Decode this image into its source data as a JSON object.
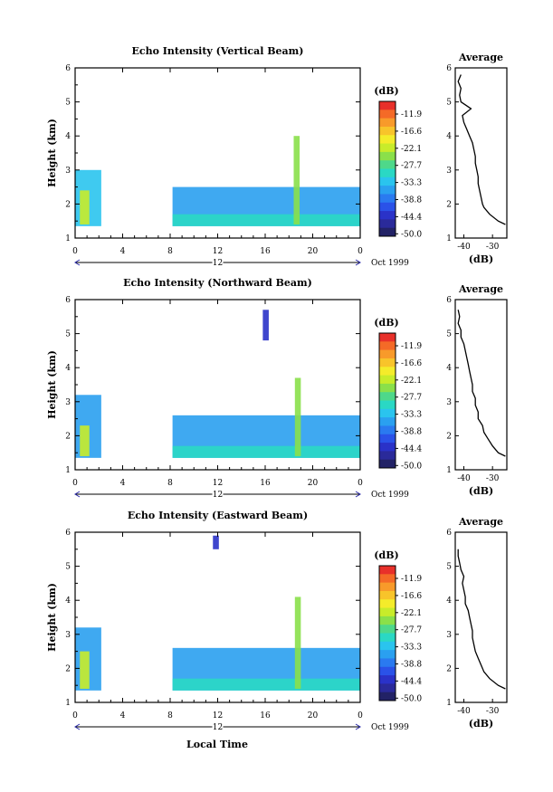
{
  "figure": {
    "x_axis_title": "Local Time"
  },
  "colorbar": {
    "unit": "(dB)",
    "labels": [
      "-11.9",
      "-16.6",
      "-22.1",
      "-27.7",
      "-33.3",
      "-38.8",
      "-44.4",
      "-50.0"
    ],
    "colors": [
      "#e8302a",
      "#f46a27",
      "#f89a2a",
      "#f8c42a",
      "#f4ec2a",
      "#c8ec2a",
      "#8ae04a",
      "#4ed88a",
      "#2ad8c4",
      "#2ac4ee",
      "#2aa0f0",
      "#2a7af0",
      "#2a52e8",
      "#2a32c8",
      "#2a2a9a",
      "#222266"
    ]
  },
  "chart_data": [
    {
      "type": "heatmap",
      "title": "Echo Intensity (Vertical Beam)",
      "ylabel": "Height (km)",
      "xlabel": "Local Time",
      "x_ticks": [
        "0",
        "4",
        "8",
        "12",
        "16",
        "20",
        "0"
      ],
      "y_ticks": [
        "1",
        "2",
        "3",
        "4",
        "5",
        "6"
      ],
      "xlim": [
        0,
        24
      ],
      "ylim": [
        1,
        6
      ],
      "date_label": "12",
      "month_label": "Oct 1999",
      "zlim": [
        -50.0,
        -11.9
      ],
      "echo_regions": [
        {
          "t_start": 0,
          "t_end": 2.2,
          "h_bottom": 1.35,
          "h_top": 3.0,
          "level": -36
        },
        {
          "t_start": 0.4,
          "t_end": 1.2,
          "h_bottom": 1.4,
          "h_top": 2.4,
          "level": -25
        },
        {
          "t_start": 8.2,
          "t_end": 24,
          "h_bottom": 1.35,
          "h_top": 2.5,
          "level": -38
        },
        {
          "t_start": 8.2,
          "t_end": 24,
          "h_bottom": 1.35,
          "h_top": 1.7,
          "level": -32
        },
        {
          "t_start": 18.4,
          "t_end": 18.9,
          "h_bottom": 1.4,
          "h_top": 4.0,
          "level": -28
        }
      ],
      "profile": {
        "title": "Average",
        "xlabel": "(dB)",
        "x_ticks": [
          "-40",
          "-30"
        ],
        "xlim": [
          -43,
          -25
        ],
        "height": [
          1.4,
          1.5,
          1.7,
          1.9,
          2.0,
          2.2,
          2.4,
          2.6,
          2.8,
          3.0,
          3.2,
          3.4,
          3.6,
          3.8,
          4.0,
          4.2,
          4.4,
          4.6,
          4.8,
          5.0,
          5.2,
          5.4,
          5.6,
          5.8
        ],
        "value": [
          -25.5,
          -28,
          -31,
          -33,
          -33.5,
          -34,
          -34.5,
          -35,
          -35,
          -35.5,
          -36,
          -36,
          -36.5,
          -37,
          -38,
          -39,
          -40,
          -40.5,
          -37.5,
          -41,
          -41.5,
          -41,
          -42,
          -41
        ]
      }
    },
    {
      "type": "heatmap",
      "title": "Echo Intensity (Northward Beam)",
      "ylabel": "Height (km)",
      "xlabel": "Local Time",
      "x_ticks": [
        "0",
        "4",
        "8",
        "12",
        "16",
        "20",
        "0"
      ],
      "y_ticks": [
        "1",
        "2",
        "3",
        "4",
        "5",
        "6"
      ],
      "xlim": [
        0,
        24
      ],
      "ylim": [
        1,
        6
      ],
      "date_label": "12",
      "month_label": "Oct 1999",
      "zlim": [
        -50.0,
        -11.9
      ],
      "echo_regions": [
        {
          "t_start": 0,
          "t_end": 2.2,
          "h_bottom": 1.35,
          "h_top": 3.2,
          "level": -37
        },
        {
          "t_start": 0.4,
          "t_end": 1.2,
          "h_bottom": 1.4,
          "h_top": 2.3,
          "level": -25
        },
        {
          "t_start": 8.2,
          "t_end": 24,
          "h_bottom": 1.35,
          "h_top": 2.6,
          "level": -38
        },
        {
          "t_start": 8.2,
          "t_end": 24,
          "h_bottom": 1.35,
          "h_top": 1.7,
          "level": -32
        },
        {
          "t_start": 15.8,
          "t_end": 16.3,
          "h_bottom": 4.8,
          "h_top": 5.7,
          "level": -46
        },
        {
          "t_start": 18.5,
          "t_end": 19.0,
          "h_bottom": 1.4,
          "h_top": 3.7,
          "level": -28
        }
      ],
      "profile": {
        "title": "Average",
        "xlabel": "(dB)",
        "x_ticks": [
          "-40",
          "-30"
        ],
        "xlim": [
          -43,
          -25
        ],
        "height": [
          1.4,
          1.5,
          1.7,
          1.9,
          2.1,
          2.3,
          2.5,
          2.7,
          2.9,
          3.1,
          3.3,
          3.5,
          3.7,
          3.9,
          4.1,
          4.3,
          4.5,
          4.7,
          4.9,
          5.1,
          5.3,
          5.5,
          5.7
        ],
        "value": [
          -25.5,
          -28,
          -30,
          -31.5,
          -33,
          -33.5,
          -35,
          -35,
          -36,
          -36,
          -37,
          -37,
          -37.5,
          -38,
          -38.5,
          -39,
          -39.5,
          -40,
          -41,
          -41,
          -42,
          -41.5,
          -42
        ]
      }
    },
    {
      "type": "heatmap",
      "title": "Echo Intensity (Eastward Beam)",
      "ylabel": "Height (km)",
      "xlabel": "Local Time",
      "x_ticks": [
        "0",
        "4",
        "8",
        "12",
        "16",
        "20",
        "0"
      ],
      "y_ticks": [
        "1",
        "2",
        "3",
        "4",
        "5",
        "6"
      ],
      "xlim": [
        0,
        24
      ],
      "ylim": [
        1,
        6
      ],
      "date_label": "12",
      "month_label": "Oct 1999",
      "zlim": [
        -50.0,
        -11.9
      ],
      "echo_regions": [
        {
          "t_start": 0,
          "t_end": 2.2,
          "h_bottom": 1.35,
          "h_top": 3.2,
          "level": -37
        },
        {
          "t_start": 0.4,
          "t_end": 1.2,
          "h_bottom": 1.4,
          "h_top": 2.5,
          "level": -25
        },
        {
          "t_start": 8.2,
          "t_end": 24,
          "h_bottom": 1.35,
          "h_top": 2.6,
          "level": -38
        },
        {
          "t_start": 8.2,
          "t_end": 24,
          "h_bottom": 1.35,
          "h_top": 1.7,
          "level": -32
        },
        {
          "t_start": 11.6,
          "t_end": 12.1,
          "h_bottom": 5.5,
          "h_top": 5.9,
          "level": -46
        },
        {
          "t_start": 18.5,
          "t_end": 19.0,
          "h_bottom": 1.4,
          "h_top": 4.1,
          "level": -28
        }
      ],
      "profile": {
        "title": "Average",
        "xlabel": "(dB)",
        "x_ticks": [
          "-40",
          "-30"
        ],
        "xlim": [
          -43,
          -25
        ],
        "height": [
          1.4,
          1.5,
          1.7,
          1.9,
          2.1,
          2.3,
          2.5,
          2.7,
          2.9,
          3.1,
          3.3,
          3.5,
          3.7,
          3.9,
          4.1,
          4.3,
          4.5,
          4.7,
          4.9,
          5.1,
          5.3,
          5.5
        ],
        "value": [
          -25.5,
          -28,
          -31,
          -33,
          -34,
          -35,
          -36,
          -36.5,
          -37,
          -37,
          -37.5,
          -38,
          -38.5,
          -39.5,
          -39.5,
          -40,
          -40.5,
          -40,
          -41,
          -41.5,
          -42,
          -42
        ]
      }
    }
  ]
}
